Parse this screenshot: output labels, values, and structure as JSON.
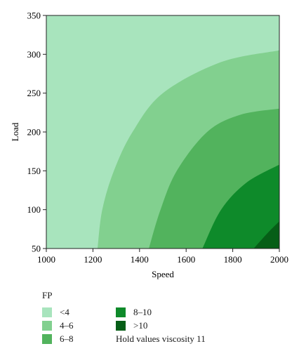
{
  "chart_data": {
    "type": "contour",
    "xlabel": "Speed",
    "ylabel": "Load",
    "xlim": [
      1000,
      2000
    ],
    "ylim": [
      50,
      350
    ],
    "xticks": [
      1000,
      1200,
      1400,
      1600,
      1800,
      2000
    ],
    "yticks": [
      50,
      100,
      150,
      200,
      250,
      300,
      350
    ],
    "grid": false,
    "legend_title": "FP",
    "legend_note": "Hold values viscosity 11",
    "levels": [
      {
        "label": "<4",
        "color": "#a8e4bd"
      },
      {
        "label": "4–6",
        "color": "#82d08f"
      },
      {
        "label": "6–8",
        "color": "#52b35d"
      },
      {
        "label": "8–10",
        "color": "#0e8a2a"
      },
      {
        "label": ">10",
        "color": "#065e17"
      }
    ],
    "boundaries": [
      {
        "name": "FP=4",
        "points": [
          [
            1220,
            50
          ],
          [
            1240,
            100
          ],
          [
            1290,
            150
          ],
          [
            1370,
            200
          ],
          [
            1500,
            250
          ],
          [
            1750,
            290
          ],
          [
            2000,
            305
          ]
        ]
      },
      {
        "name": "FP=6",
        "points": [
          [
            1440,
            50
          ],
          [
            1490,
            100
          ],
          [
            1560,
            150
          ],
          [
            1690,
            200
          ],
          [
            1830,
            222
          ],
          [
            2000,
            230
          ]
        ]
      },
      {
        "name": "FP=8",
        "points": [
          [
            1670,
            50
          ],
          [
            1750,
            100
          ],
          [
            1860,
            135
          ],
          [
            2000,
            158
          ]
        ]
      },
      {
        "name": "FP=10",
        "points": [
          [
            1890,
            50
          ],
          [
            1950,
            70
          ],
          [
            2000,
            85
          ]
        ]
      }
    ]
  }
}
